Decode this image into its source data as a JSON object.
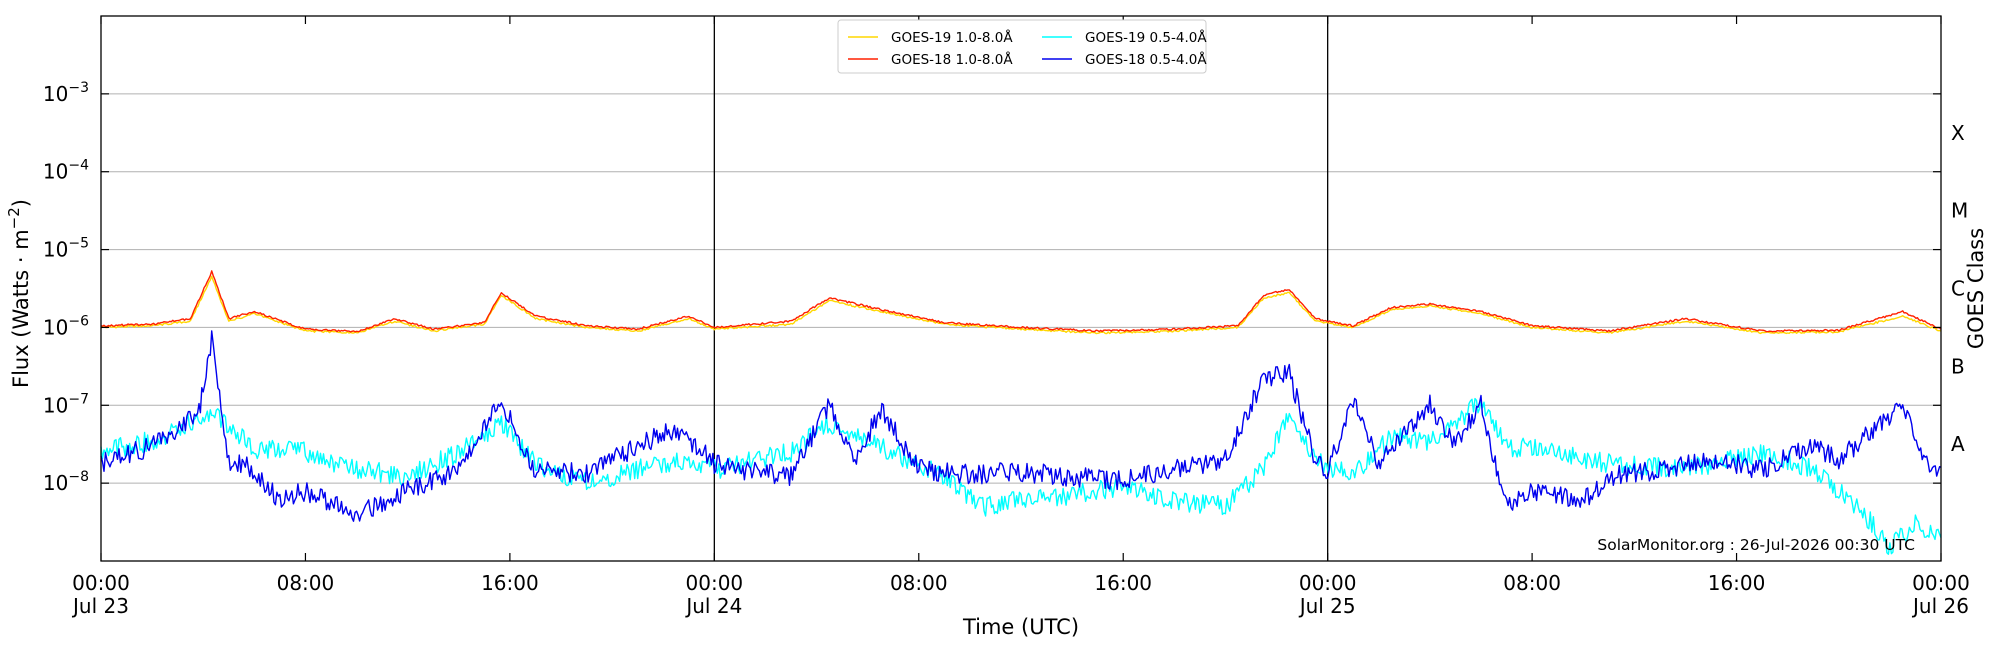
{
  "chart_data": {
    "type": "line",
    "xlabel": "Time (UTC)",
    "ylabel": "Flux (Watts · m^-2)",
    "ylabel_right": "GOES Class",
    "y_scale": "log",
    "ylim": [
      1e-09,
      0.01
    ],
    "xlim": [
      "2026-07-23 00:00",
      "2026-07-26 00:00"
    ],
    "y_ticks": [
      {
        "value": 1e-08,
        "base": "10",
        "exp": "−8"
      },
      {
        "value": 1e-07,
        "base": "10",
        "exp": "−7"
      },
      {
        "value": 1e-06,
        "base": "10",
        "exp": "−6"
      },
      {
        "value": 1e-05,
        "base": "10",
        "exp": "−5"
      },
      {
        "value": 0.0001,
        "base": "10",
        "exp": "−4"
      },
      {
        "value": 0.001,
        "base": "10",
        "exp": "−3"
      }
    ],
    "x_ticks": [
      {
        "time": "2026-07-23 00:00",
        "line1": "00:00",
        "line2": "Jul 23"
      },
      {
        "time": "2026-07-23 08:00",
        "line1": "08:00",
        "line2": ""
      },
      {
        "time": "2026-07-23 16:00",
        "line1": "16:00",
        "line2": ""
      },
      {
        "time": "2026-07-24 00:00",
        "line1": "00:00",
        "line2": "Jul 24"
      },
      {
        "time": "2026-07-24 08:00",
        "line1": "08:00",
        "line2": ""
      },
      {
        "time": "2026-07-24 16:00",
        "line1": "16:00",
        "line2": ""
      },
      {
        "time": "2026-07-25 00:00",
        "line1": "00:00",
        "line2": "Jul 25"
      },
      {
        "time": "2026-07-25 08:00",
        "line1": "08:00",
        "line2": ""
      },
      {
        "time": "2026-07-25 16:00",
        "line1": "16:00",
        "line2": ""
      },
      {
        "time": "2026-07-26 00:00",
        "line1": "00:00",
        "line2": "Jul 26"
      }
    ],
    "day_dividers": [
      "2026-07-24 00:00",
      "2026-07-25 00:00"
    ],
    "goes_classes": [
      {
        "label": "A",
        "min": 1e-08,
        "max": 1e-07
      },
      {
        "label": "B",
        "min": 1e-07,
        "max": 1e-06
      },
      {
        "label": "C",
        "min": 1e-06,
        "max": 1e-05
      },
      {
        "label": "M",
        "min": 1e-05,
        "max": 0.0001
      },
      {
        "label": "X",
        "min": 0.0001,
        "max": 0.001
      }
    ],
    "grid": true,
    "legend_position": "top-center",
    "series": [
      {
        "name": "GOES-19 1.0-8.0Å",
        "color": "#ffd700",
        "group": "long",
        "points": [
          [
            "2026-07-23 00:00",
            1e-06
          ],
          [
            "2026-07-23 02:00",
            1.05e-06
          ],
          [
            "2026-07-23 03:30",
            1.2e-06
          ],
          [
            "2026-07-23 04:20",
            4.5e-06
          ],
          [
            "2026-07-23 05:00",
            1.2e-06
          ],
          [
            "2026-07-23 06:00",
            1.5e-06
          ],
          [
            "2026-07-23 08:00",
            9e-07
          ],
          [
            "2026-07-23 10:00",
            8.5e-07
          ],
          [
            "2026-07-23 11:30",
            1.2e-06
          ],
          [
            "2026-07-23 13:00",
            9e-07
          ],
          [
            "2026-07-23 15:00",
            1.1e-06
          ],
          [
            "2026-07-23 15:40",
            2.6e-06
          ],
          [
            "2026-07-23 17:00",
            1.3e-06
          ],
          [
            "2026-07-23 19:00",
            1e-06
          ],
          [
            "2026-07-23 21:00",
            9e-07
          ],
          [
            "2026-07-23 23:00",
            1.3e-06
          ],
          [
            "2026-07-24 00:00",
            9.5e-07
          ],
          [
            "2026-07-24 03:00",
            1.1e-06
          ],
          [
            "2026-07-24 04:30",
            2.2e-06
          ],
          [
            "2026-07-24 06:30",
            1.6e-06
          ],
          [
            "2026-07-24 09:00",
            1.1e-06
          ],
          [
            "2026-07-24 12:00",
            9.5e-07
          ],
          [
            "2026-07-24 15:00",
            8.5e-07
          ],
          [
            "2026-07-24 18:00",
            9e-07
          ],
          [
            "2026-07-24 20:30",
            1e-06
          ],
          [
            "2026-07-24 21:30",
            2.4e-06
          ],
          [
            "2026-07-24 22:30",
            2.8e-06
          ],
          [
            "2026-07-24 23:30",
            1.2e-06
          ],
          [
            "2026-07-25 01:00",
            1e-06
          ],
          [
            "2026-07-25 02:30",
            1.7e-06
          ],
          [
            "2026-07-25 04:00",
            1.9e-06
          ],
          [
            "2026-07-25 06:00",
            1.5e-06
          ],
          [
            "2026-07-25 08:00",
            1e-06
          ],
          [
            "2026-07-25 11:00",
            8.5e-07
          ],
          [
            "2026-07-25 14:00",
            1.2e-06
          ],
          [
            "2026-07-25 17:00",
            8.5e-07
          ],
          [
            "2026-07-25 20:00",
            8.8e-07
          ],
          [
            "2026-07-25 22:30",
            1.4e-06
          ],
          [
            "2026-07-26 00:00",
            9e-07
          ]
        ]
      },
      {
        "name": "GOES-18 1.0-8.0Å",
        "color": "#ff2000",
        "group": "long",
        "points": [
          [
            "2026-07-23 00:00",
            1.05e-06
          ],
          [
            "2026-07-23 02:00",
            1.1e-06
          ],
          [
            "2026-07-23 03:30",
            1.3e-06
          ],
          [
            "2026-07-23 04:20",
            5.2e-06
          ],
          [
            "2026-07-23 05:00",
            1.3e-06
          ],
          [
            "2026-07-23 06:00",
            1.6e-06
          ],
          [
            "2026-07-23 08:00",
            9.5e-07
          ],
          [
            "2026-07-23 10:00",
            8.8e-07
          ],
          [
            "2026-07-23 11:30",
            1.3e-06
          ],
          [
            "2026-07-23 13:00",
            9.5e-07
          ],
          [
            "2026-07-23 15:00",
            1.15e-06
          ],
          [
            "2026-07-23 15:40",
            2.8e-06
          ],
          [
            "2026-07-23 17:00",
            1.4e-06
          ],
          [
            "2026-07-23 19:00",
            1.05e-06
          ],
          [
            "2026-07-23 21:00",
            9.5e-07
          ],
          [
            "2026-07-23 23:00",
            1.4e-06
          ],
          [
            "2026-07-24 00:00",
            1e-06
          ],
          [
            "2026-07-24 03:00",
            1.2e-06
          ],
          [
            "2026-07-24 04:30",
            2.4e-06
          ],
          [
            "2026-07-24 06:30",
            1.7e-06
          ],
          [
            "2026-07-24 09:00",
            1.15e-06
          ],
          [
            "2026-07-24 12:00",
            1e-06
          ],
          [
            "2026-07-24 15:00",
            9e-07
          ],
          [
            "2026-07-24 18:00",
            9.5e-07
          ],
          [
            "2026-07-24 20:30",
            1.05e-06
          ],
          [
            "2026-07-24 21:30",
            2.6e-06
          ],
          [
            "2026-07-24 22:30",
            3.1e-06
          ],
          [
            "2026-07-24 23:30",
            1.3e-06
          ],
          [
            "2026-07-25 01:00",
            1.05e-06
          ],
          [
            "2026-07-25 02:30",
            1.8e-06
          ],
          [
            "2026-07-25 04:00",
            2e-06
          ],
          [
            "2026-07-25 06:00",
            1.6e-06
          ],
          [
            "2026-07-25 08:00",
            1.05e-06
          ],
          [
            "2026-07-25 11:00",
            9e-07
          ],
          [
            "2026-07-25 14:00",
            1.3e-06
          ],
          [
            "2026-07-25 17:00",
            9e-07
          ],
          [
            "2026-07-25 20:00",
            9.2e-07
          ],
          [
            "2026-07-25 22:30",
            1.6e-06
          ],
          [
            "2026-07-26 00:00",
            9.5e-07
          ]
        ]
      },
      {
        "name": "GOES-19 0.5-4.0Å",
        "color": "#00ffff",
        "group": "short",
        "points": [
          [
            "2026-07-23 00:00",
            2.5e-08
          ],
          [
            "2026-07-23 02:00",
            3.5e-08
          ],
          [
            "2026-07-23 04:20",
            8e-08
          ],
          [
            "2026-07-23 06:00",
            2.8e-08
          ],
          [
            "2026-07-23 08:00",
            2.5e-08
          ],
          [
            "2026-07-23 10:00",
            1.5e-08
          ],
          [
            "2026-07-23 12:00",
            1.2e-08
          ],
          [
            "2026-07-23 14:00",
            2.5e-08
          ],
          [
            "2026-07-23 15:40",
            6e-08
          ],
          [
            "2026-07-23 17:00",
            1.8e-08
          ],
          [
            "2026-07-23 19:00",
            1e-08
          ],
          [
            "2026-07-23 21:00",
            1.5e-08
          ],
          [
            "2026-07-23 23:00",
            2e-08
          ],
          [
            "2026-07-24 00:00",
            1.5e-08
          ],
          [
            "2026-07-24 03:00",
            2.5e-08
          ],
          [
            "2026-07-24 04:30",
            6e-08
          ],
          [
            "2026-07-24 06:30",
            3e-08
          ],
          [
            "2026-07-24 09:00",
            1.2e-08
          ],
          [
            "2026-07-24 10:30",
            5e-09
          ],
          [
            "2026-07-24 12:00",
            6e-09
          ],
          [
            "2026-07-24 14:00",
            7e-09
          ],
          [
            "2026-07-24 16:00",
            9e-09
          ],
          [
            "2026-07-24 18:00",
            6e-09
          ],
          [
            "2026-07-24 20:00",
            5e-09
          ],
          [
            "2026-07-24 21:30",
            1.5e-08
          ],
          [
            "2026-07-24 22:30",
            8e-08
          ],
          [
            "2026-07-24 23:30",
            2e-08
          ],
          [
            "2026-07-25 01:00",
            1.2e-08
          ],
          [
            "2026-07-25 02:30",
            4e-08
          ],
          [
            "2026-07-25 04:00",
            3.5e-08
          ],
          [
            "2026-07-25 06:00",
            1.1e-07
          ],
          [
            "2026-07-25 07:00",
            3e-08
          ],
          [
            "2026-07-25 09:00",
            2.5e-08
          ],
          [
            "2026-07-25 11:00",
            1.8e-08
          ],
          [
            "2026-07-25 14:00",
            1.5e-08
          ],
          [
            "2026-07-25 17:00",
            2.5e-08
          ],
          [
            "2026-07-25 19:00",
            1.5e-08
          ],
          [
            "2026-07-25 21:00",
            4e-09
          ],
          [
            "2026-07-25 22:00",
            1.5e-09
          ],
          [
            "2026-07-25 23:00",
            3e-09
          ],
          [
            "2026-07-26 00:00",
            2e-09
          ]
        ]
      },
      {
        "name": "GOES-18 0.5-4.0Å",
        "color": "#0000ee",
        "group": "short",
        "points": [
          [
            "2026-07-23 00:00",
            1.8e-08
          ],
          [
            "2026-07-23 02:00",
            3e-08
          ],
          [
            "2026-07-23 03:50",
            8e-08
          ],
          [
            "2026-07-23 04:20",
            7.5e-07
          ],
          [
            "2026-07-23 05:00",
            2e-08
          ],
          [
            "2026-07-23 06:00",
            1.5e-08
          ],
          [
            "2026-07-23 07:00",
            6e-09
          ],
          [
            "2026-07-23 08:00",
            8e-09
          ],
          [
            "2026-07-23 10:00",
            4e-09
          ],
          [
            "2026-07-23 12:00",
            8e-09
          ],
          [
            "2026-07-23 14:00",
            1.5e-08
          ],
          [
            "2026-07-23 15:40",
            1.1e-07
          ],
          [
            "2026-07-23 17:00",
            1.5e-08
          ],
          [
            "2026-07-23 19:00",
            1.3e-08
          ],
          [
            "2026-07-23 21:00",
            3e-08
          ],
          [
            "2026-07-23 22:30",
            5e-08
          ],
          [
            "2026-07-24 00:00",
            1.8e-08
          ],
          [
            "2026-07-24 01:00",
            1.5e-08
          ],
          [
            "2026-07-24 03:00",
            1.2e-08
          ],
          [
            "2026-07-24 04:30",
            1e-07
          ],
          [
            "2026-07-24 05:30",
            1.8e-08
          ],
          [
            "2026-07-24 06:30",
            9e-08
          ],
          [
            "2026-07-24 08:00",
            1.5e-08
          ],
          [
            "2026-07-24 10:00",
            1.3e-08
          ],
          [
            "2026-07-24 12:00",
            1.4e-08
          ],
          [
            "2026-07-24 14:00",
            1.2e-08
          ],
          [
            "2026-07-24 16:00",
            1.1e-08
          ],
          [
            "2026-07-24 18:00",
            1.5e-08
          ],
          [
            "2026-07-24 20:00",
            2e-08
          ],
          [
            "2026-07-24 21:30",
            2.3e-07
          ],
          [
            "2026-07-24 22:30",
            2.6e-07
          ],
          [
            "2026-07-24 23:30",
            2e-08
          ],
          [
            "2026-07-25 00:00",
            1.5e-08
          ],
          [
            "2026-07-25 01:00",
            1.2e-07
          ],
          [
            "2026-07-25 02:00",
            1.8e-08
          ],
          [
            "2026-07-25 04:00",
            1e-07
          ],
          [
            "2026-07-25 05:00",
            3e-08
          ],
          [
            "2026-07-25 06:00",
            1.1e-07
          ],
          [
            "2026-07-25 06:30",
            2e-08
          ],
          [
            "2026-07-25 07:00",
            5e-09
          ],
          [
            "2026-07-25 08:00",
            8e-09
          ],
          [
            "2026-07-25 10:00",
            6e-09
          ],
          [
            "2026-07-25 11:00",
            1.2e-08
          ],
          [
            "2026-07-25 13:00",
            1.5e-08
          ],
          [
            "2026-07-25 15:00",
            2e-08
          ],
          [
            "2026-07-25 17:00",
            1.5e-08
          ],
          [
            "2026-07-25 19:00",
            3e-08
          ],
          [
            "2026-07-25 20:00",
            2e-08
          ],
          [
            "2026-07-25 22:30",
            1e-07
          ],
          [
            "2026-07-25 23:30",
            1.6e-08
          ],
          [
            "2026-07-26 00:00",
            1.6e-08
          ]
        ]
      }
    ]
  },
  "watermark": "SolarMonitor.org : 26-Jul-2026 00:30 UTC"
}
